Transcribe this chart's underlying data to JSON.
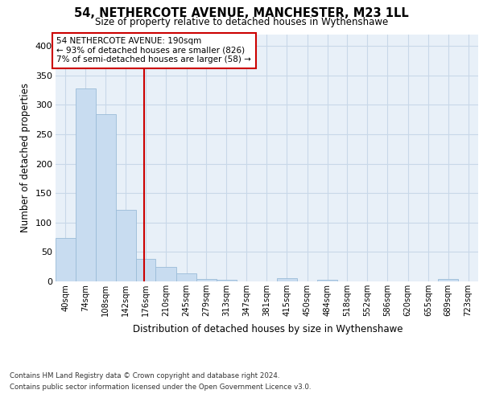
{
  "title": "54, NETHERCOTE AVENUE, MANCHESTER, M23 1LL",
  "subtitle": "Size of property relative to detached houses in Wythenshawe",
  "xlabel": "Distribution of detached houses by size in Wythenshawe",
  "ylabel": "Number of detached properties",
  "footer_line1": "Contains HM Land Registry data © Crown copyright and database right 2024.",
  "footer_line2": "Contains public sector information licensed under the Open Government Licence v3.0.",
  "annotation_line1": "54 NETHERCOTE AVENUE: 190sqm",
  "annotation_line2": "← 93% of detached houses are smaller (826)",
  "annotation_line3": "7% of semi-detached houses are larger (58) →",
  "property_size": 190,
  "bar_categories": [
    "40sqm",
    "74sqm",
    "108sqm",
    "142sqm",
    "176sqm",
    "210sqm",
    "245sqm",
    "279sqm",
    "313sqm",
    "347sqm",
    "381sqm",
    "415sqm",
    "450sqm",
    "484sqm",
    "518sqm",
    "552sqm",
    "586sqm",
    "620sqm",
    "655sqm",
    "689sqm",
    "723sqm"
  ],
  "bar_values": [
    74,
    328,
    284,
    121,
    38,
    25,
    13,
    4,
    3,
    0,
    0,
    5,
    0,
    3,
    0,
    0,
    0,
    0,
    0,
    4,
    0
  ],
  "bar_edges": [
    40,
    74,
    108,
    142,
    176,
    210,
    245,
    279,
    313,
    347,
    381,
    415,
    450,
    484,
    518,
    552,
    586,
    620,
    655,
    689,
    723,
    757
  ],
  "bar_color": "#c8dcf0",
  "bar_edge_color": "#9bbcd8",
  "vline_x": 190,
  "vline_color": "#cc0000",
  "grid_color": "#c8d8e8",
  "bg_color": "#e8f0f8",
  "annotation_box_color": "#cc0000",
  "ylim": [
    0,
    420
  ],
  "yticks": [
    0,
    50,
    100,
    150,
    200,
    250,
    300,
    350,
    400
  ]
}
